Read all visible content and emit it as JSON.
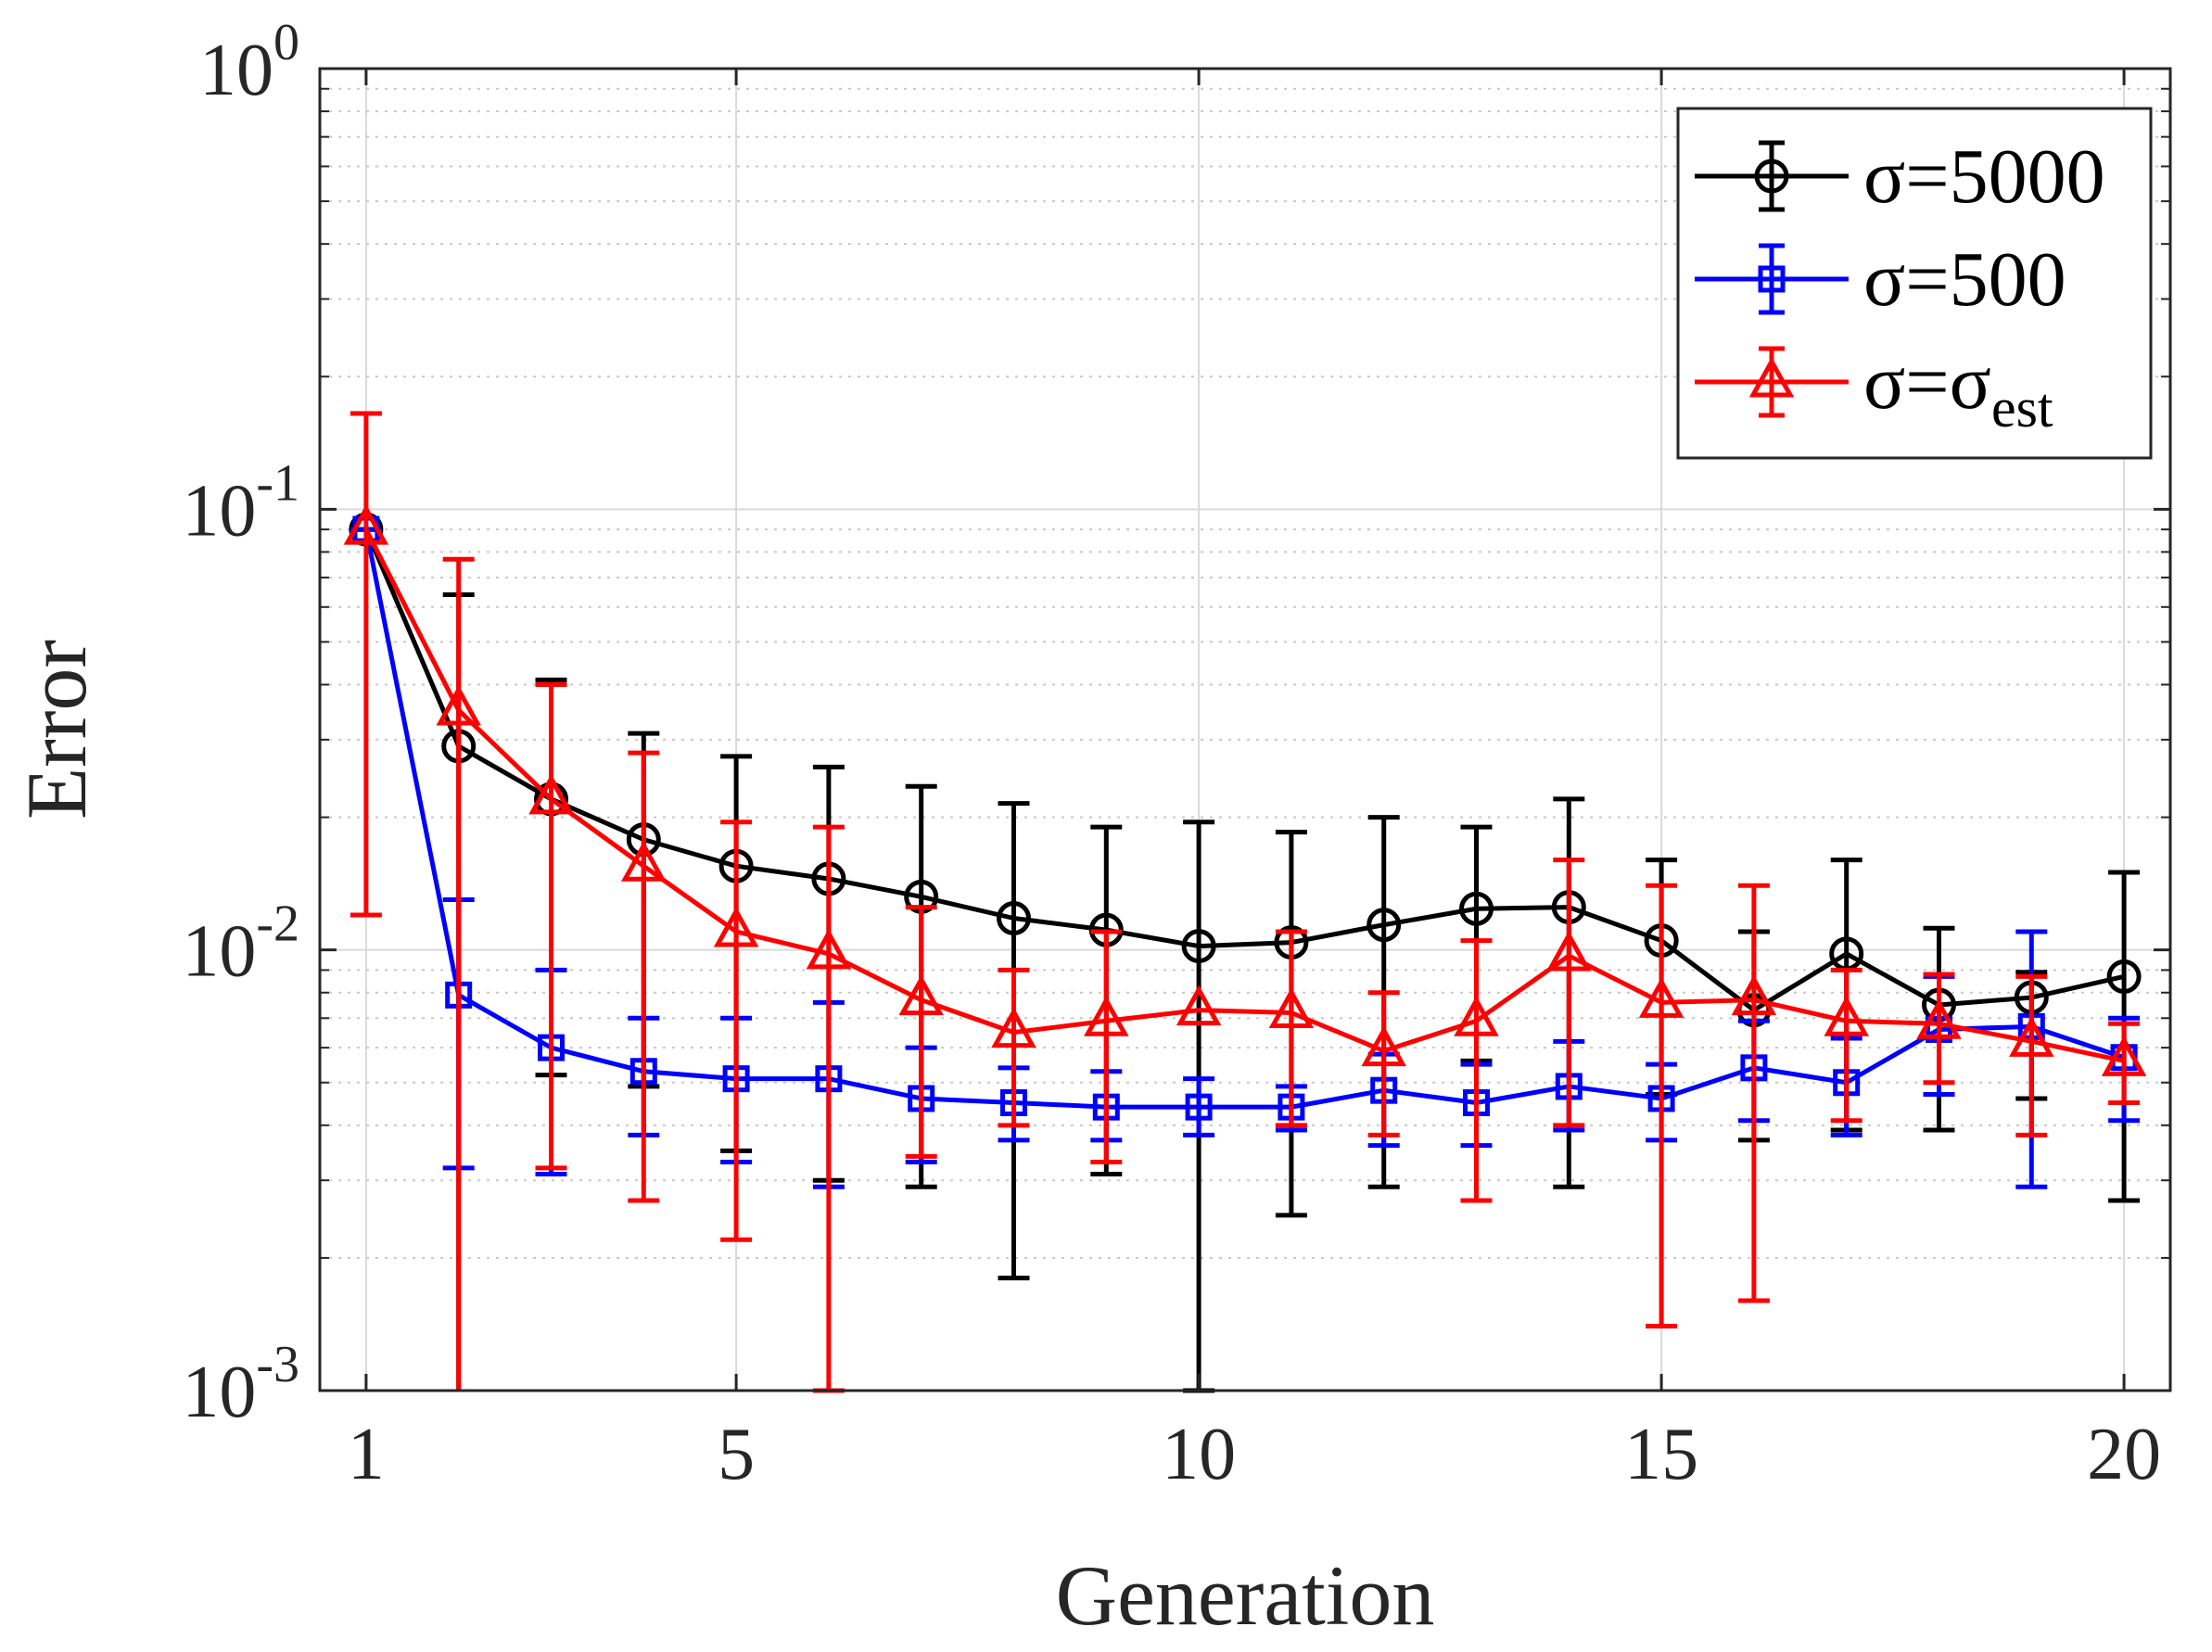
{
  "chart_data": {
    "type": "line",
    "title": "",
    "xlabel": "Generation",
    "ylabel": "Error",
    "xlim": [
      0.5,
      20.5
    ],
    "ylim": [
      0.001,
      1
    ],
    "yscale": "log",
    "x_ticks": [
      1,
      5,
      10,
      15,
      20
    ],
    "x_tick_labels": [
      "1",
      "5",
      "10",
      "15",
      "20"
    ],
    "y_ticks": [
      {
        "value": 0.001,
        "base": "10",
        "exp": "-3"
      },
      {
        "value": 0.01,
        "base": "10",
        "exp": "-2"
      },
      {
        "value": 0.1,
        "base": "10",
        "exp": "-1"
      },
      {
        "value": 1,
        "base": "10",
        "exp": "0"
      }
    ],
    "grid": true,
    "legend_position": "top-right",
    "x": [
      1,
      2,
      3,
      4,
      5,
      6,
      7,
      8,
      9,
      10,
      11,
      12,
      13,
      14,
      15,
      16,
      17,
      18,
      19,
      20
    ],
    "series": [
      {
        "name": "σ=5000",
        "legend_main": "σ=5000",
        "legend_sub": "",
        "color": "#000000",
        "marker": "circle",
        "values": [
          0.09,
          0.029,
          0.022,
          0.0178,
          0.0155,
          0.0145,
          0.0132,
          0.0118,
          0.0111,
          0.0102,
          0.0104,
          0.0114,
          0.0124,
          0.0125,
          0.0105,
          0.0073,
          0.0098,
          0.0075,
          0.0078,
          0.0087
        ],
        "err_low": [
          0.09,
          0.0,
          0.0052,
          0.0049,
          0.0035,
          0.003,
          0.0029,
          0.0018,
          0.0031,
          0.0009,
          0.0025,
          0.0029,
          0.0056,
          0.0029,
          0.0047,
          0.0037,
          0.0039,
          0.0039,
          0.0046,
          0.0027
        ],
        "err_high": [
          0.09,
          0.064,
          0.041,
          0.031,
          0.0275,
          0.026,
          0.0235,
          0.0215,
          0.019,
          0.0195,
          0.0185,
          0.02,
          0.019,
          0.022,
          0.016,
          0.011,
          0.016,
          0.0112,
          0.0089,
          0.015
        ]
      },
      {
        "name": "σ=500",
        "legend_main": "σ=500",
        "legend_sub": "",
        "color": "#0000ff",
        "marker": "square",
        "values": [
          0.09,
          0.0079,
          0.006,
          0.0053,
          0.0051,
          0.0051,
          0.0046,
          0.0045,
          0.0044,
          0.0044,
          0.0044,
          0.0048,
          0.0045,
          0.0049,
          0.0046,
          0.0054,
          0.005,
          0.0066,
          0.0067,
          0.0057
        ],
        "err_low": [
          0.09,
          0.0032,
          0.0031,
          0.0038,
          0.0033,
          0.0029,
          0.0033,
          0.0037,
          0.0037,
          0.0038,
          0.0039,
          0.0036,
          0.0036,
          0.0039,
          0.0037,
          0.0041,
          0.0038,
          0.0047,
          0.0029,
          0.0041
        ],
        "err_high": [
          0.09,
          0.013,
          0.009,
          0.007,
          0.007,
          0.0076,
          0.006,
          0.0054,
          0.0053,
          0.0051,
          0.0049,
          0.0058,
          0.0055,
          0.0062,
          0.0055,
          0.0069,
          0.0063,
          0.0087,
          0.011,
          0.007
        ]
      },
      {
        "name": "σ=σest",
        "legend_main": "σ=σ",
        "legend_sub": "est",
        "color": "#ff0000",
        "marker": "triangle",
        "values": [
          0.09,
          0.035,
          0.022,
          0.0155,
          0.011,
          0.0098,
          0.0077,
          0.0065,
          0.0069,
          0.0073,
          0.0072,
          0.0059,
          0.0069,
          0.0097,
          0.0076,
          0.0077,
          0.0069,
          0.0068,
          0.0062,
          0.0056
        ],
        "err_low": [
          0.012,
          0.0,
          0.0032,
          0.0027,
          0.0022,
          0.001,
          0.0034,
          0.004,
          0.0033,
          0.0,
          0.004,
          0.0038,
          0.0027,
          0.004,
          0.0014,
          0.0016,
          0.0041,
          0.005,
          0.0038,
          0.0045
        ],
        "err_high": [
          0.165,
          0.077,
          0.04,
          0.028,
          0.0195,
          0.019,
          0.0125,
          0.009,
          0.011,
          0.0,
          0.011,
          0.008,
          0.0105,
          0.016,
          0.014,
          0.014,
          0.009,
          0.0088,
          0.0087,
          0.0068
        ]
      }
    ]
  }
}
